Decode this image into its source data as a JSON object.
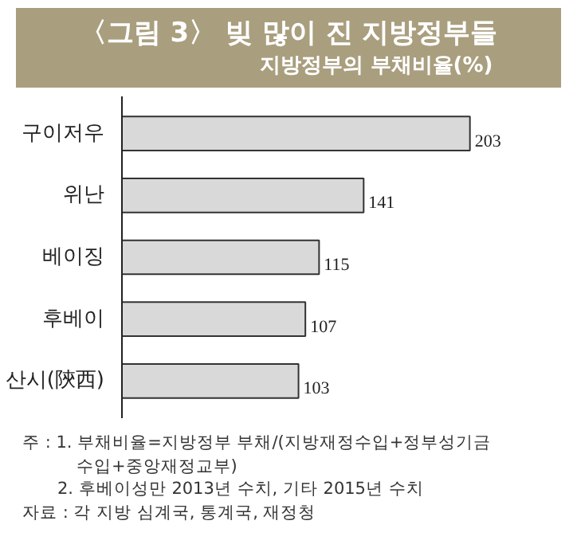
{
  "chart_data": {
    "type": "bar",
    "orientation": "horizontal",
    "title": "〈그림 3〉 빚 많이 진 지방정부들",
    "subtitle": "지방정부의 부채비율(%)",
    "categories": [
      "구이저우",
      "위난",
      "베이징",
      "후베이",
      "산시(陝西)"
    ],
    "values": [
      203,
      141,
      115,
      107,
      103
    ],
    "color": "#d9d9d9",
    "data_labels": true,
    "annotations": [
      "주 : 1. 부채비율=지방정부 부채/(지방재정수입+정부성기금\n수입+중앙재정교부)",
      "2. 후베이성만 2013년 수치, 기타 2015년 수치",
      "자료 : 각 지방 심계국, 통계국, 재정청"
    ]
  }
}
